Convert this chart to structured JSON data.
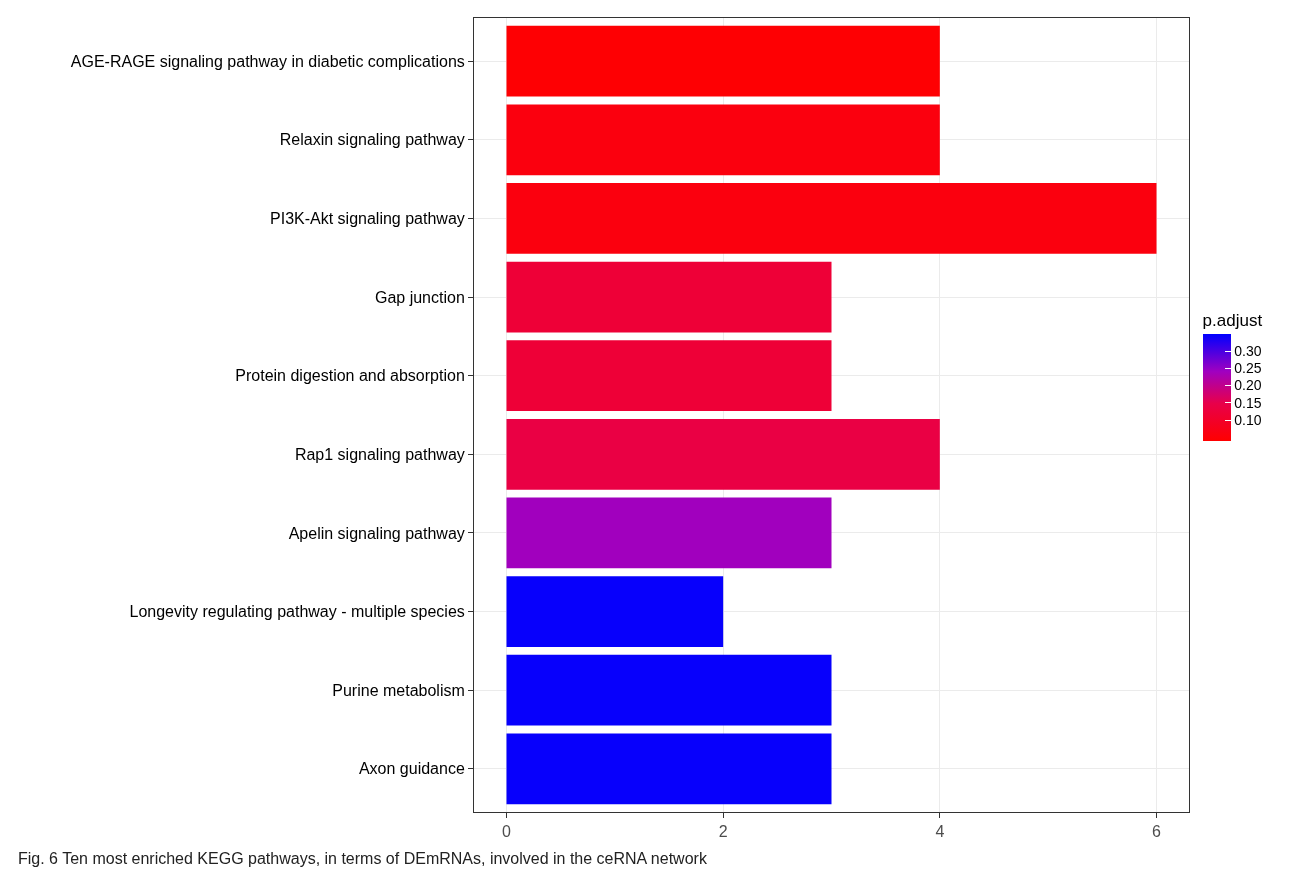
{
  "chart_data": {
    "type": "bar",
    "orientation": "horizontal",
    "categories": [
      "AGE-RAGE signaling pathway in diabetic complications",
      "Relaxin signaling pathway",
      "PI3K-Akt signaling pathway",
      "Gap junction",
      "Protein digestion and absorption",
      "Rap1 signaling pathway",
      "Apelin signaling pathway",
      "Longevity regulating pathway - multiple species",
      "Purine metabolism",
      "Axon guidance"
    ],
    "values": [
      4,
      4,
      6,
      3,
      3,
      4,
      3,
      2,
      3,
      3
    ],
    "cvalues": [
      0.045,
      0.06,
      0.06,
      0.12,
      0.12,
      0.14,
      0.24,
      0.345,
      0.345,
      0.345
    ],
    "clabel": "p.adjust",
    "clim": [
      0.04,
      0.35
    ],
    "cticks": [
      {
        "value": 0.1,
        "label": "0.10"
      },
      0.15,
      {
        "value": 0.2,
        "label": "0.20"
      },
      0.25,
      {
        "value": 0.3,
        "label": "0.30"
      }
    ],
    "xlim": [
      -0.3,
      6.3
    ],
    "xticks": [
      0,
      2,
      4,
      6
    ],
    "grid": true,
    "annotations": [
      "Fig. 6 Ten most enriched KEGG pathways, in terms of DEmRNAs, involved in the ceRNA network"
    ]
  }
}
